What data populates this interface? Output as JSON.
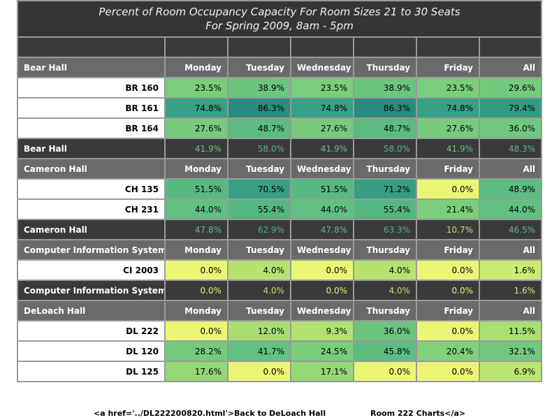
{
  "title_line1": "Percent of Room Occupancy Capacity For Room Sizes 21 to 30 Seats",
  "title_line2": "For Spring 2009, 8am - 5pm",
  "columns": [
    "Monday",
    "Tuesday",
    "Wednesday",
    "Thursday",
    "Friday",
    "All"
  ],
  "groups": [
    {
      "hall": "Bear Hall",
      "rooms": [
        {
          "room": "BR 160",
          "values": [
            "23.5%",
            "38.9%",
            "23.5%",
            "38.9%",
            "23.5%",
            "29.6%"
          ],
          "colors": [
            "#79cf7b",
            "#6bc57f",
            "#79cf7b",
            "#6bc57f",
            "#79cf7b",
            "#73ca7d"
          ]
        },
        {
          "room": "BR 161",
          "values": [
            "74.8%",
            "86.3%",
            "74.8%",
            "86.3%",
            "74.8%",
            "79.4%"
          ],
          "colors": [
            "#37a084",
            "#2b8b7f",
            "#37a084",
            "#2b8b7f",
            "#37a084",
            "#339a84"
          ]
        },
        {
          "room": "BR 164",
          "values": [
            "27.6%",
            "48.7%",
            "27.6%",
            "48.7%",
            "27.6%",
            "36.0%"
          ],
          "colors": [
            "#76cc7c",
            "#5cbb80",
            "#76cc7c",
            "#5cbb80",
            "#76cc7c",
            "#6ec87e"
          ]
        }
      ],
      "summary": [
        "41.9%",
        "58.0%",
        "41.9%",
        "58.0%",
        "41.9%",
        "48.3%"
      ],
      "summary_colors": [
        "#63c380",
        "#55b77e",
        "#63c380",
        "#55b77e",
        "#63c380",
        "#5cbb80"
      ]
    },
    {
      "hall": "Cameron Hall",
      "rooms": [
        {
          "room": "CH 135",
          "values": [
            "51.5%",
            "70.5%",
            "51.5%",
            "71.2%",
            "0.0%",
            "48.9%"
          ],
          "colors": [
            "#57b880",
            "#399f82",
            "#57b880",
            "#389e83",
            "#ebf774",
            "#5cbb80"
          ]
        },
        {
          "room": "CH 231",
          "values": [
            "44.0%",
            "55.4%",
            "44.0%",
            "55.4%",
            "21.4%",
            "44.0%"
          ],
          "colors": [
            "#60c081",
            "#55b77f",
            "#60c081",
            "#55b77f",
            "#7ccf7a",
            "#60c081"
          ]
        }
      ],
      "summary": [
        "47.8%",
        "62.9%",
        "47.8%",
        "63.3%",
        "10.7%",
        "46.5%"
      ],
      "summary_colors": [
        "#5cbb80",
        "#4fb27e",
        "#5cbb80",
        "#4fb27e",
        "#b8e26f",
        "#5ebd80"
      ]
    },
    {
      "hall": "Computer Information Systems",
      "rooms": [
        {
          "room": "CI 2003",
          "values": [
            "0.0%",
            "4.0%",
            "0.0%",
            "4.0%",
            "0.0%",
            "1.6%"
          ],
          "colors": [
            "#ebf774",
            "#b6e370",
            "#ebf774",
            "#b6e370",
            "#ebf774",
            "#c9ec73"
          ]
        }
      ],
      "summary": [
        "0.0%",
        "4.0%",
        "0.0%",
        "4.0%",
        "0.0%",
        "1.6%"
      ],
      "summary_colors": [
        "#e4f478",
        "#b6e370",
        "#e4f478",
        "#b6e370",
        "#e4f478",
        "#c9ec73"
      ]
    },
    {
      "hall": "DeLoach Hall",
      "rooms": [
        {
          "room": "DL 222",
          "values": [
            "0.0%",
            "12.0%",
            "9.3%",
            "36.0%",
            "0.0%",
            "11.5%"
          ],
          "colors": [
            "#ebf774",
            "#a8dd72",
            "#b2e170",
            "#6cc57f",
            "#ebf774",
            "#a9de71"
          ]
        },
        {
          "room": "DL 120",
          "values": [
            "28.2%",
            "41.7%",
            "24.5%",
            "45.8%",
            "20.4%",
            "32.1%"
          ],
          "colors": [
            "#75cb7c",
            "#61c180",
            "#79ce7b",
            "#5dbd80",
            "#80d17a",
            "#71c97e"
          ]
        },
        {
          "room": "DL 125",
          "values": [
            "17.6%",
            "0.0%",
            "17.1%",
            "0.0%",
            "0.0%",
            "6.9%"
          ],
          "colors": [
            "#93d776",
            "#ebf774",
            "#95d876",
            "#ebf774",
            "#ebf774",
            "#bde571"
          ]
        }
      ],
      "summary": null
    }
  ],
  "footer": {
    "left": "<a href='../DL222200820.html'>Back to DeLoach Hall",
    "right": "Room 222 Charts</a>"
  }
}
